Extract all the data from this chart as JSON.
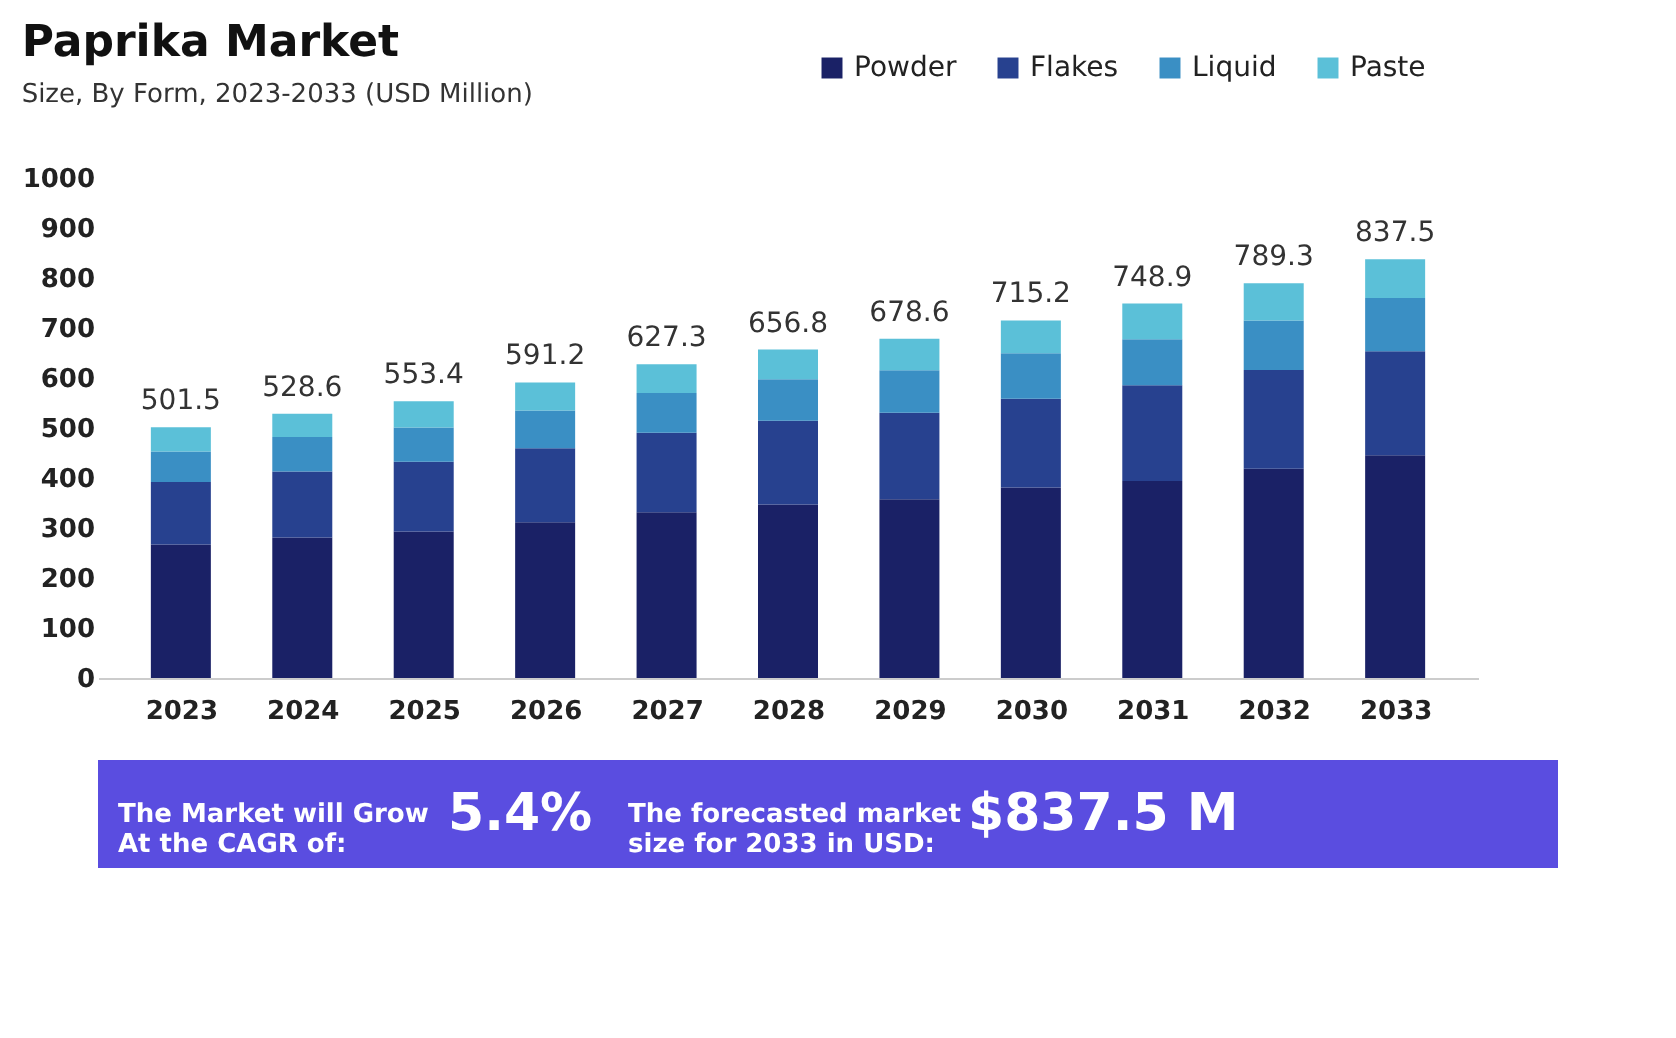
{
  "chart_data": {
    "type": "bar",
    "stacked": true,
    "title": "Paprika Market",
    "subtitle": "Size, By Form, 2023-2033 (USD Million)",
    "categories": [
      "2023",
      "2024",
      "2025",
      "2026",
      "2027",
      "2028",
      "2029",
      "2030",
      "2031",
      "2032",
      "2033"
    ],
    "series": [
      {
        "name": "Powder",
        "color": "#1a2166",
        "values": [
          266.8,
          280.8,
          293.1,
          311.6,
          331.6,
          346.8,
          357.7,
          380.8,
          394.2,
          418.4,
          445.4
        ]
      },
      {
        "name": "Flakes",
        "color": "#27418f",
        "values": [
          125.1,
          132.2,
          139.3,
          148.0,
          159.0,
          167.6,
          172.6,
          177.8,
          191.3,
          197.6,
          208.2
        ]
      },
      {
        "name": "Liquid",
        "color": "#3a8fc4",
        "values": [
          61.1,
          69.0,
          68.7,
          75.5,
          79.5,
          83.3,
          85.3,
          90.9,
          91.8,
          98.8,
          106.5
        ]
      },
      {
        "name": "Paste",
        "color": "#5bc0d8",
        "values": [
          48.5,
          46.6,
          52.3,
          56.1,
          57.2,
          59.1,
          63.0,
          65.7,
          71.6,
          74.5,
          77.4
        ]
      }
    ],
    "totals": [
      "501.5",
      "528.6",
      "553.4",
      "591.2",
      "627.3",
      "656.8",
      "678.6",
      "715.2",
      "748.9",
      "789.3",
      "837.5"
    ],
    "ylim": [
      0,
      1000
    ],
    "yticks": [
      0,
      100,
      200,
      300,
      400,
      500,
      600,
      700,
      800,
      900,
      1000
    ],
    "grid": false,
    "legend": "top right",
    "annotations": [
      "The Market will Grow\nAt the CAGR of:",
      "5.4%",
      "The forecasted market\nsize for 2033 in USD:",
      "$837.5 M"
    ]
  }
}
